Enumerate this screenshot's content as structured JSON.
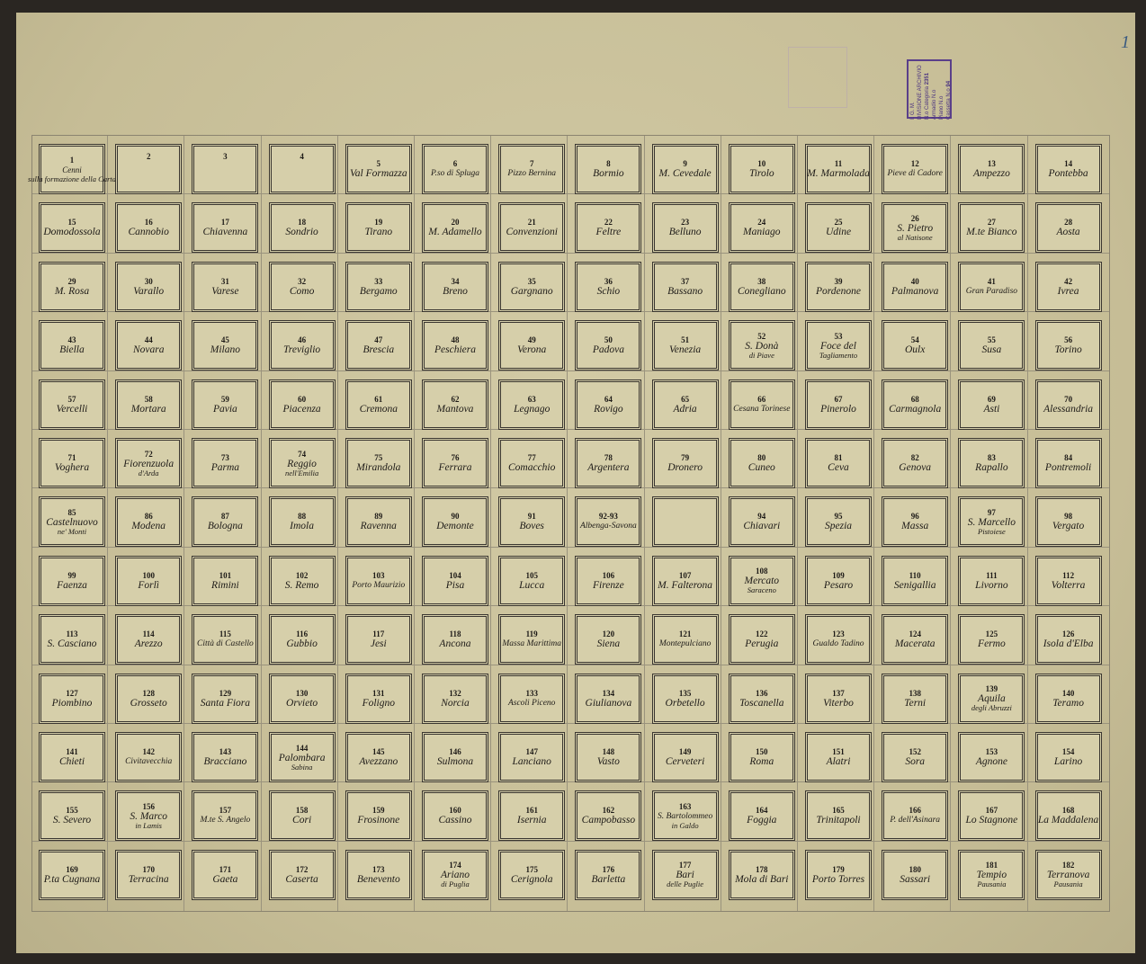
{
  "corner_mark": "1",
  "stamp": {
    "org": "I. G. M.",
    "division": "DIVISIONE ARCHIVIO",
    "category_label": "N.o Categoria",
    "category_value": "2351",
    "cabinet_label": "Armadio N.o",
    "shelf_label": "Piano N.o",
    "drawer_label": "Cassetta N.o",
    "drawer_value": "94"
  },
  "sheets": [
    [
      {
        "num": "1",
        "name": "Cenni",
        "sub": "sulla formazione della Carta"
      },
      {
        "num": "2",
        "name": ""
      },
      {
        "num": "3",
        "name": ""
      },
      {
        "num": "4",
        "name": ""
      },
      {
        "num": "5",
        "name": "Val Formazza"
      },
      {
        "num": "6",
        "name": "P.so di Spluga"
      },
      {
        "num": "7",
        "name": "Pizzo Bernina"
      },
      {
        "num": "8",
        "name": "Bormio"
      },
      {
        "num": "9",
        "name": "M. Cevedale"
      },
      {
        "num": "10",
        "name": "Tirolo"
      },
      {
        "num": "11",
        "name": "M. Marmolada"
      },
      {
        "num": "12",
        "name": "Pieve di Cadore"
      },
      {
        "num": "13",
        "name": "Ampezzo"
      },
      {
        "num": "14",
        "name": "Pontebba"
      }
    ],
    [
      {
        "num": "15",
        "name": "Domodossola"
      },
      {
        "num": "16",
        "name": "Cannobio"
      },
      {
        "num": "17",
        "name": "Chiavenna"
      },
      {
        "num": "18",
        "name": "Sondrio"
      },
      {
        "num": "19",
        "name": "Tirano"
      },
      {
        "num": "20",
        "name": "M. Adamello"
      },
      {
        "num": "21",
        "name": "Convenzioni"
      },
      {
        "num": "22",
        "name": "Feltre"
      },
      {
        "num": "23",
        "name": "Belluno"
      },
      {
        "num": "24",
        "name": "Maniago"
      },
      {
        "num": "25",
        "name": "Udine"
      },
      {
        "num": "26",
        "name": "S. Pietro",
        "sub": "al Natisone"
      },
      {
        "num": "27",
        "name": "M.te Bianco"
      },
      {
        "num": "28",
        "name": "Aosta"
      }
    ],
    [
      {
        "num": "29",
        "name": "M. Rosa"
      },
      {
        "num": "30",
        "name": "Varallo"
      },
      {
        "num": "31",
        "name": "Varese"
      },
      {
        "num": "32",
        "name": "Como"
      },
      {
        "num": "33",
        "name": "Bergamo"
      },
      {
        "num": "34",
        "name": "Breno"
      },
      {
        "num": "35",
        "name": "Gargnano"
      },
      {
        "num": "36",
        "name": "Schio"
      },
      {
        "num": "37",
        "name": "Bassano"
      },
      {
        "num": "38",
        "name": "Conegliano"
      },
      {
        "num": "39",
        "name": "Pordenone"
      },
      {
        "num": "40",
        "name": "Palmanova"
      },
      {
        "num": "41",
        "name": "Gran Paradiso"
      },
      {
        "num": "42",
        "name": "Ivrea"
      }
    ],
    [
      {
        "num": "43",
        "name": "Biella"
      },
      {
        "num": "44",
        "name": "Novara"
      },
      {
        "num": "45",
        "name": "Milano"
      },
      {
        "num": "46",
        "name": "Treviglio"
      },
      {
        "num": "47",
        "name": "Brescia"
      },
      {
        "num": "48",
        "name": "Peschiera"
      },
      {
        "num": "49",
        "name": "Verona"
      },
      {
        "num": "50",
        "name": "Padova"
      },
      {
        "num": "51",
        "name": "Venezia"
      },
      {
        "num": "52",
        "name": "S. Donà",
        "sub": "di Piave"
      },
      {
        "num": "53",
        "name": "Foce del",
        "sub": "Tagliamento"
      },
      {
        "num": "54",
        "name": "Oulx"
      },
      {
        "num": "55",
        "name": "Susa"
      },
      {
        "num": "56",
        "name": "Torino"
      }
    ],
    [
      {
        "num": "57",
        "name": "Vercelli"
      },
      {
        "num": "58",
        "name": "Mortara"
      },
      {
        "num": "59",
        "name": "Pavia"
      },
      {
        "num": "60",
        "name": "Piacenza"
      },
      {
        "num": "61",
        "name": "Cremona"
      },
      {
        "num": "62",
        "name": "Mantova"
      },
      {
        "num": "63",
        "name": "Legnago"
      },
      {
        "num": "64",
        "name": "Rovigo"
      },
      {
        "num": "65",
        "name": "Adria"
      },
      {
        "num": "66",
        "name": "Cesana Torinese"
      },
      {
        "num": "67",
        "name": "Pinerolo"
      },
      {
        "num": "68",
        "name": "Carmagnola"
      },
      {
        "num": "69",
        "name": "Asti"
      },
      {
        "num": "70",
        "name": "Alessandria"
      }
    ],
    [
      {
        "num": "71",
        "name": "Voghera"
      },
      {
        "num": "72",
        "name": "Fiorenzuola",
        "sub": "d'Arda"
      },
      {
        "num": "73",
        "name": "Parma"
      },
      {
        "num": "74",
        "name": "Reggio",
        "sub": "nell'Emilia"
      },
      {
        "num": "75",
        "name": "Mirandola"
      },
      {
        "num": "76",
        "name": "Ferrara"
      },
      {
        "num": "77",
        "name": "Comacchio"
      },
      {
        "num": "78",
        "name": "Argentera"
      },
      {
        "num": "79",
        "name": "Dronero"
      },
      {
        "num": "80",
        "name": "Cuneo"
      },
      {
        "num": "81",
        "name": "Ceva"
      },
      {
        "num": "82",
        "name": "Genova"
      },
      {
        "num": "83",
        "name": "Rapallo"
      },
      {
        "num": "84",
        "name": "Pontremoli"
      }
    ],
    [
      {
        "num": "85",
        "name": "Castelnuovo",
        "sub": "ne' Monti"
      },
      {
        "num": "86",
        "name": "Modena"
      },
      {
        "num": "87",
        "name": "Bologna"
      },
      {
        "num": "88",
        "name": "Imola"
      },
      {
        "num": "89",
        "name": "Ravenna"
      },
      {
        "num": "90",
        "name": "Demonte"
      },
      {
        "num": "91",
        "name": "Boves"
      },
      {
        "num": "92-93",
        "name": "Albenga-Savona"
      },
      {
        "num": "",
        "name": ""
      },
      {
        "num": "94",
        "name": "Chiavari"
      },
      {
        "num": "95",
        "name": "Spezia"
      },
      {
        "num": "96",
        "name": "Massa"
      },
      {
        "num": "97",
        "name": "S. Marcello",
        "sub": "Pistoiese"
      },
      {
        "num": "98",
        "name": "Vergato"
      }
    ],
    [
      {
        "num": "99",
        "name": "Faenza"
      },
      {
        "num": "100",
        "name": "Forlì"
      },
      {
        "num": "101",
        "name": "Rimini"
      },
      {
        "num": "102",
        "name": "S. Remo"
      },
      {
        "num": "103",
        "name": "Porto Maurizio"
      },
      {
        "num": "104",
        "name": "Pisa"
      },
      {
        "num": "105",
        "name": "Lucca"
      },
      {
        "num": "106",
        "name": "Firenze"
      },
      {
        "num": "107",
        "name": "M. Falterona"
      },
      {
        "num": "108",
        "name": "Mercato",
        "sub": "Saraceno"
      },
      {
        "num": "109",
        "name": "Pesaro"
      },
      {
        "num": "110",
        "name": "Senigallia"
      },
      {
        "num": "111",
        "name": "Livorno"
      },
      {
        "num": "112",
        "name": "Volterra"
      }
    ],
    [
      {
        "num": "113",
        "name": "S. Casciano"
      },
      {
        "num": "114",
        "name": "Arezzo"
      },
      {
        "num": "115",
        "name": "Città di Castello"
      },
      {
        "num": "116",
        "name": "Gubbio"
      },
      {
        "num": "117",
        "name": "Jesi"
      },
      {
        "num": "118",
        "name": "Ancona"
      },
      {
        "num": "119",
        "name": "Massa Marittima"
      },
      {
        "num": "120",
        "name": "Siena"
      },
      {
        "num": "121",
        "name": "Montepulciano"
      },
      {
        "num": "122",
        "name": "Perugia"
      },
      {
        "num": "123",
        "name": "Gualdo Tadino"
      },
      {
        "num": "124",
        "name": "Macerata"
      },
      {
        "num": "125",
        "name": "Fermo"
      },
      {
        "num": "126",
        "name": "Isola d'Elba"
      }
    ],
    [
      {
        "num": "127",
        "name": "Piombino"
      },
      {
        "num": "128",
        "name": "Grosseto"
      },
      {
        "num": "129",
        "name": "Santa Fiora"
      },
      {
        "num": "130",
        "name": "Orvieto"
      },
      {
        "num": "131",
        "name": "Foligno"
      },
      {
        "num": "132",
        "name": "Norcia"
      },
      {
        "num": "133",
        "name": "Ascoli Piceno"
      },
      {
        "num": "134",
        "name": "Giulianova"
      },
      {
        "num": "135",
        "name": "Orbetello"
      },
      {
        "num": "136",
        "name": "Toscanella"
      },
      {
        "num": "137",
        "name": "Viterbo"
      },
      {
        "num": "138",
        "name": "Terni"
      },
      {
        "num": "139",
        "name": "Aquila",
        "sub": "degli Abruzzi"
      },
      {
        "num": "140",
        "name": "Teramo"
      }
    ],
    [
      {
        "num": "141",
        "name": "Chieti"
      },
      {
        "num": "142",
        "name": "Civitavecchia"
      },
      {
        "num": "143",
        "name": "Bracciano"
      },
      {
        "num": "144",
        "name": "Palombara",
        "sub": "Sabina"
      },
      {
        "num": "145",
        "name": "Avezzano"
      },
      {
        "num": "146",
        "name": "Sulmona"
      },
      {
        "num": "147",
        "name": "Lanciano"
      },
      {
        "num": "148",
        "name": "Vasto"
      },
      {
        "num": "149",
        "name": "Cerveteri"
      },
      {
        "num": "150",
        "name": "Roma"
      },
      {
        "num": "151",
        "name": "Alatri"
      },
      {
        "num": "152",
        "name": "Sora"
      },
      {
        "num": "153",
        "name": "Agnone"
      },
      {
        "num": "154",
        "name": "Larino"
      }
    ],
    [
      {
        "num": "155",
        "name": "S. Severo"
      },
      {
        "num": "156",
        "name": "S. Marco",
        "sub": "in Lamis"
      },
      {
        "num": "157",
        "name": "M.te S. Angelo"
      },
      {
        "num": "158",
        "name": "Cori"
      },
      {
        "num": "159",
        "name": "Frosinone"
      },
      {
        "num": "160",
        "name": "Cassino"
      },
      {
        "num": "161",
        "name": "Isernia"
      },
      {
        "num": "162",
        "name": "Campobasso"
      },
      {
        "num": "163",
        "name": "S. Bartolommeo",
        "sub": "in Galdo"
      },
      {
        "num": "164",
        "name": "Foggia"
      },
      {
        "num": "165",
        "name": "Trinitapoli"
      },
      {
        "num": "166",
        "name": "P. dell'Asinara"
      },
      {
        "num": "167",
        "name": "Lo Stagnone"
      },
      {
        "num": "168",
        "name": "La Maddalena"
      }
    ],
    [
      {
        "num": "169",
        "name": "P.ta Cugnana"
      },
      {
        "num": "170",
        "name": "Terracina"
      },
      {
        "num": "171",
        "name": "Gaeta"
      },
      {
        "num": "172",
        "name": "Caserta"
      },
      {
        "num": "173",
        "name": "Benevento"
      },
      {
        "num": "174",
        "name": "Ariano",
        "sub": "di Puglia"
      },
      {
        "num": "175",
        "name": "Cerignola"
      },
      {
        "num": "176",
        "name": "Barletta"
      },
      {
        "num": "177",
        "name": "Bari",
        "sub": "delle Puglie"
      },
      {
        "num": "178",
        "name": "Mola di Bari"
      },
      {
        "num": "179",
        "name": "Porto Torres"
      },
      {
        "num": "180",
        "name": "Sassari"
      },
      {
        "num": "181",
        "name": "Tempio",
        "sub": "Pausania"
      },
      {
        "num": "182",
        "name": "Terranova",
        "sub": "Pausania"
      }
    ]
  ]
}
